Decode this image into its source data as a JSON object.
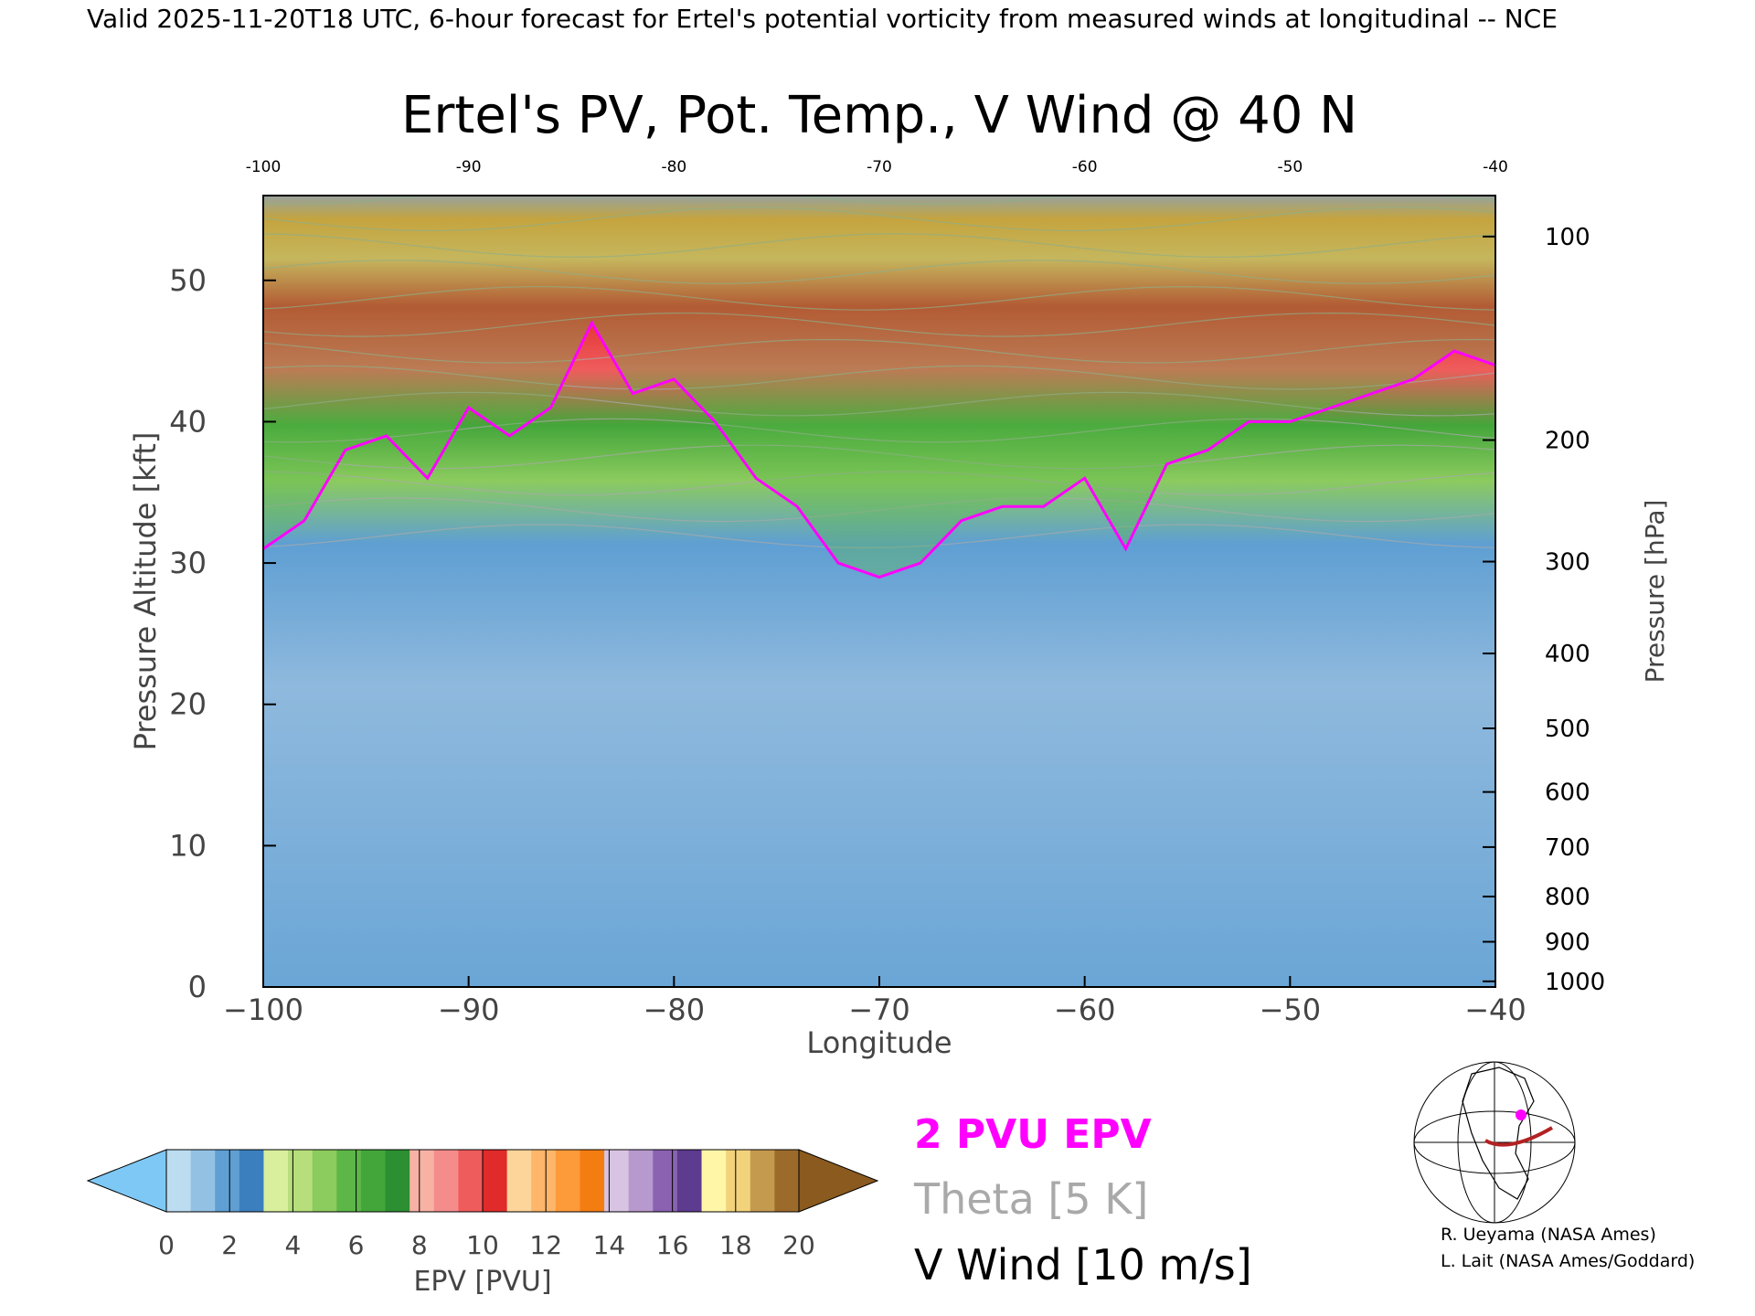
{
  "header": {
    "valid_line": "Valid 2025-11-20T18 UTC, 6-hour forecast for Ertel's potential vorticity from measured winds at longitudinal -- NCE"
  },
  "chart_data": {
    "type": "heatmap",
    "title": "Ertel's PV, Pot. Temp., V Wind @ 40 N",
    "xlabel": "Longitude",
    "ylabel": "Pressure Altitude [kft]",
    "ylabel_right": "Pressure [hPa]",
    "xlim": [
      -100,
      -40
    ],
    "ylim": [
      0,
      56
    ],
    "x_ticks": [
      -100,
      -90,
      -80,
      -70,
      -60,
      -50,
      -40
    ],
    "x_tick_labels": [
      "−100",
      "−90",
      "−80",
      "−70",
      "−60",
      "−50",
      "−40"
    ],
    "x_top_tick_labels": [
      "-100",
      "-90",
      "-80",
      "-70",
      "-60",
      "-50",
      "-40"
    ],
    "y_ticks": [
      0,
      10,
      20,
      30,
      40,
      50
    ],
    "y_tick_labels": [
      "0",
      "10",
      "20",
      "30",
      "40",
      "50"
    ],
    "pressure_ticks": [
      {
        "label": "100",
        "kft": 53.1
      },
      {
        "label": "200",
        "kft": 38.7
      },
      {
        "label": "300",
        "kft": 30.1
      },
      {
        "label": "400",
        "kft": 23.6
      },
      {
        "label": "500",
        "kft": 18.3
      },
      {
        "label": "600",
        "kft": 13.8
      },
      {
        "label": "700",
        "kft": 9.9
      },
      {
        "label": "800",
        "kft": 6.4
      },
      {
        "label": "900",
        "kft": 3.2
      },
      {
        "label": "1000",
        "kft": 0.4
      }
    ],
    "tropopause_2pvu_kft": [
      [
        -100,
        31
      ],
      [
        -98,
        33
      ],
      [
        -96,
        38
      ],
      [
        -94,
        39
      ],
      [
        -92,
        36
      ],
      [
        -90,
        41
      ],
      [
        -88,
        39
      ],
      [
        -86,
        41
      ],
      [
        -84,
        47
      ],
      [
        -82,
        42
      ],
      [
        -80,
        43
      ],
      [
        -78,
        40
      ],
      [
        -76,
        36
      ],
      [
        -74,
        34
      ],
      [
        -72,
        30
      ],
      [
        -70,
        29
      ],
      [
        -68,
        30
      ],
      [
        -66,
        33
      ],
      [
        -64,
        34
      ],
      [
        -62,
        34
      ],
      [
        -60,
        36
      ],
      [
        -58,
        31
      ],
      [
        -56,
        37
      ],
      [
        -54,
        38
      ],
      [
        -52,
        40
      ],
      [
        -50,
        40
      ],
      [
        -48,
        41
      ],
      [
        -46,
        42
      ],
      [
        -44,
        43
      ],
      [
        -42,
        45
      ],
      [
        -40,
        44
      ]
    ],
    "legend": {
      "items": [
        {
          "label": "2 PVU EPV",
          "color": "#ff00ff"
        },
        {
          "label": "Theta [5 K]",
          "color": "#a9a9a9"
        },
        {
          "label": "V Wind [10 m/s]",
          "color": "#000000"
        }
      ]
    },
    "colorbar": {
      "label": "EPV [PVU]",
      "ticks": [
        "0",
        "2",
        "4",
        "6",
        "8",
        "10",
        "12",
        "14",
        "16",
        "18",
        "20"
      ],
      "under_color": "#7ec8f5",
      "over_color": "#8b5a1e",
      "colors": [
        "#bcdcf0",
        "#93c1e4",
        "#5f9fd3",
        "#3c7fbe",
        "#d9ef9d",
        "#b6df7b",
        "#8ccb5e",
        "#5db748",
        "#43a63a",
        "#2c8f32",
        "#f7b2a4",
        "#f58c8c",
        "#ef5c5c",
        "#e12a2a",
        "#fdd49a",
        "#fdb66a",
        "#fd9a3a",
        "#f47d12",
        "#d8c3e2",
        "#b799cd",
        "#8a62b1",
        "#5d3b8f",
        "#fff6a8",
        "#f3d27c",
        "#c49a4f",
        "#9c6b2c"
      ]
    }
  },
  "inset_map": {
    "credits": [
      "R. Ueyama (NASA Ames)",
      "L. Lait (NASA Ames/Goddard)"
    ],
    "track_color": "#b22222",
    "marker_color": "#ff00ff"
  }
}
